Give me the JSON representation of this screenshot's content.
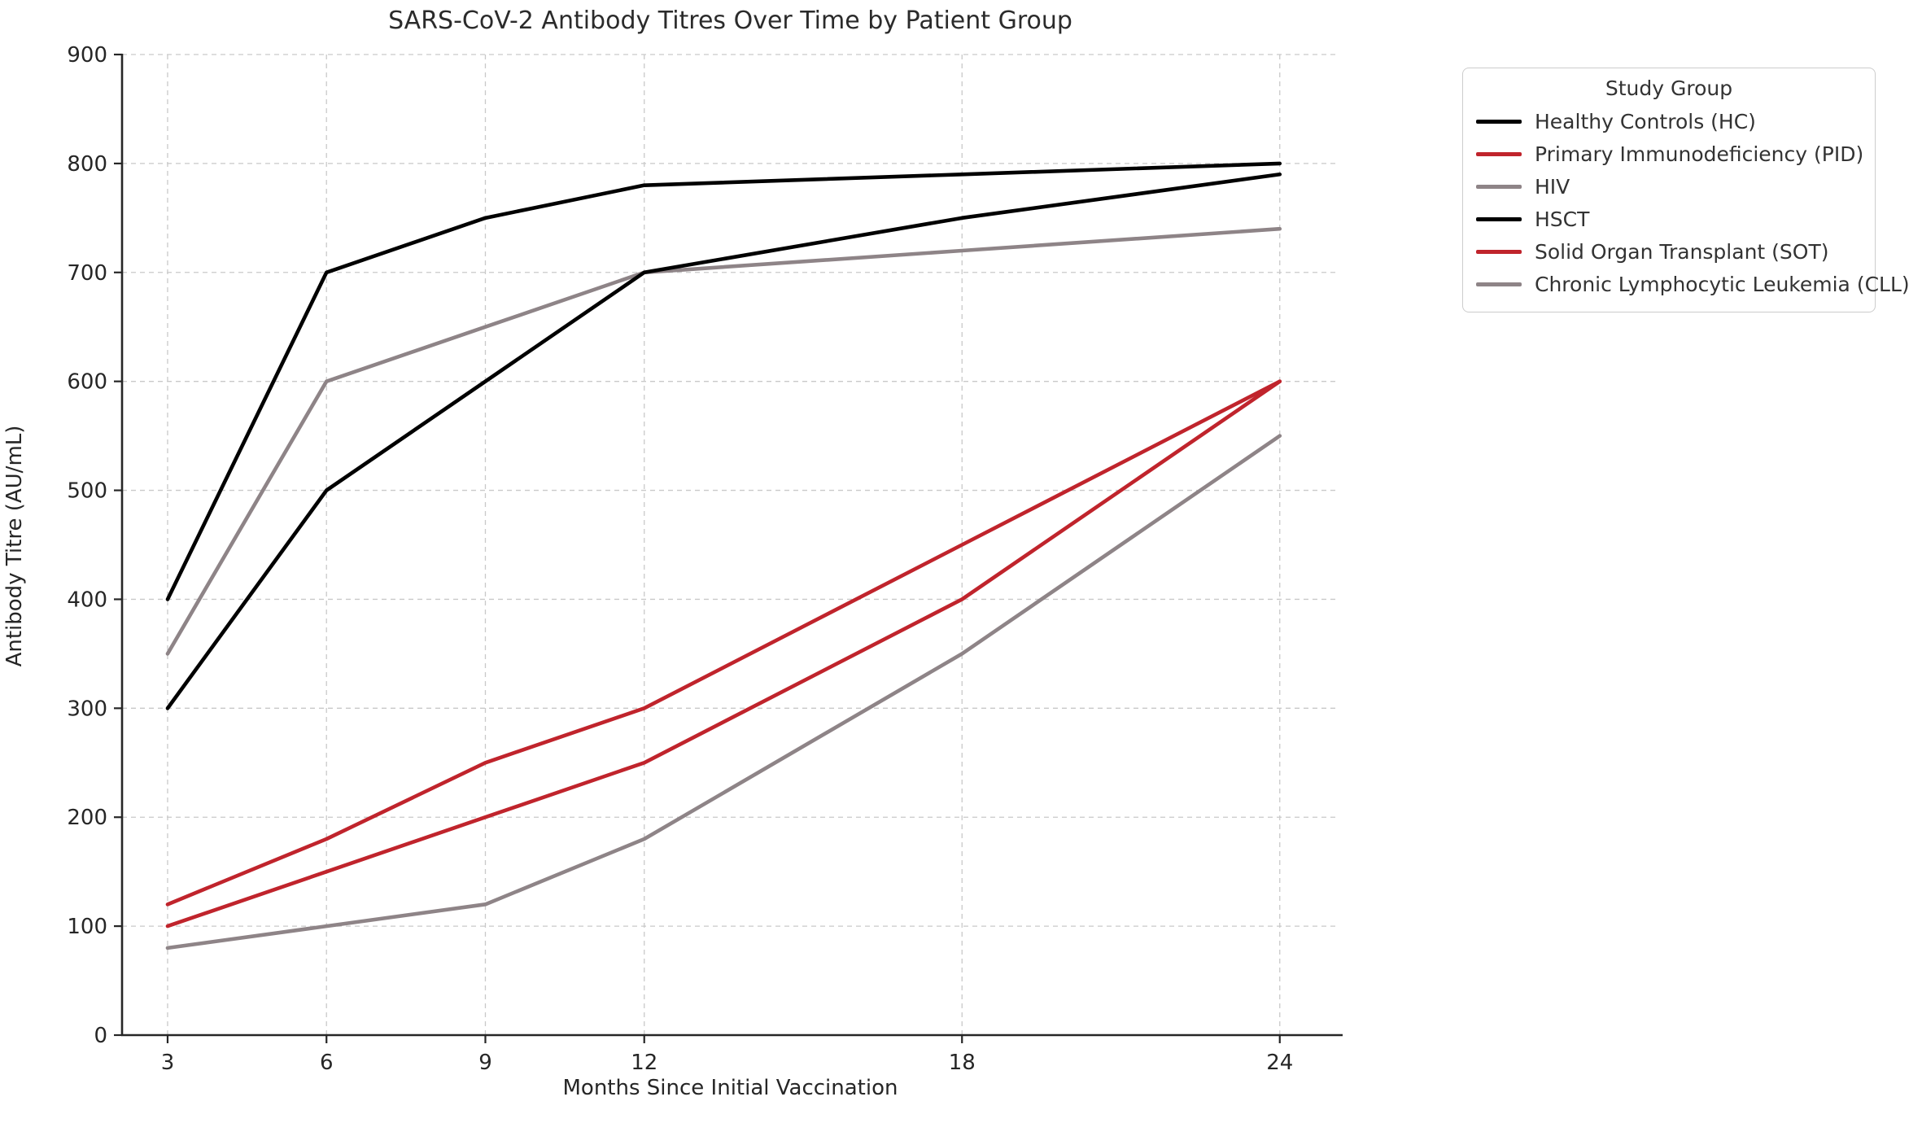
{
  "chart_data": {
    "type": "line",
    "title": "SARS-CoV-2 Antibody Titres Over Time by Patient Group",
    "xlabel": "Months Since Initial Vaccination",
    "ylabel": "Antibody Titre (AU/mL)",
    "legend_title": "Study Group",
    "legend_position": "outside upper right",
    "grid": true,
    "x": [
      3,
      6,
      9,
      12,
      18,
      24
    ],
    "xlim": [
      2.14,
      25.11
    ],
    "ylim": [
      0,
      900
    ],
    "yticks": [
      0,
      100,
      200,
      300,
      400,
      500,
      600,
      700,
      800,
      900
    ],
    "series": [
      {
        "name": "Healthy Controls (HC)",
        "color": "#000000",
        "values": [
          400,
          700,
          750,
          780,
          790,
          800
        ]
      },
      {
        "name": "Primary Immunodeficiency (PID)",
        "color": "#c0242c",
        "values": [
          120,
          180,
          250,
          300,
          450,
          600
        ]
      },
      {
        "name": "HIV",
        "color": "#8e8487",
        "values": [
          350,
          600,
          650,
          700,
          720,
          740
        ]
      },
      {
        "name": "HSCT",
        "color": "#000000",
        "values": [
          300,
          500,
          600,
          700,
          750,
          790
        ]
      },
      {
        "name": "Solid Organ Transplant (SOT)",
        "color": "#c0242c",
        "values": [
          100,
          150,
          200,
          250,
          400,
          600
        ]
      },
      {
        "name": "Chronic Lymphocytic Leukemia (CLL)",
        "color": "#8e8487",
        "values": [
          80,
          100,
          120,
          180,
          350,
          550
        ]
      }
    ]
  }
}
